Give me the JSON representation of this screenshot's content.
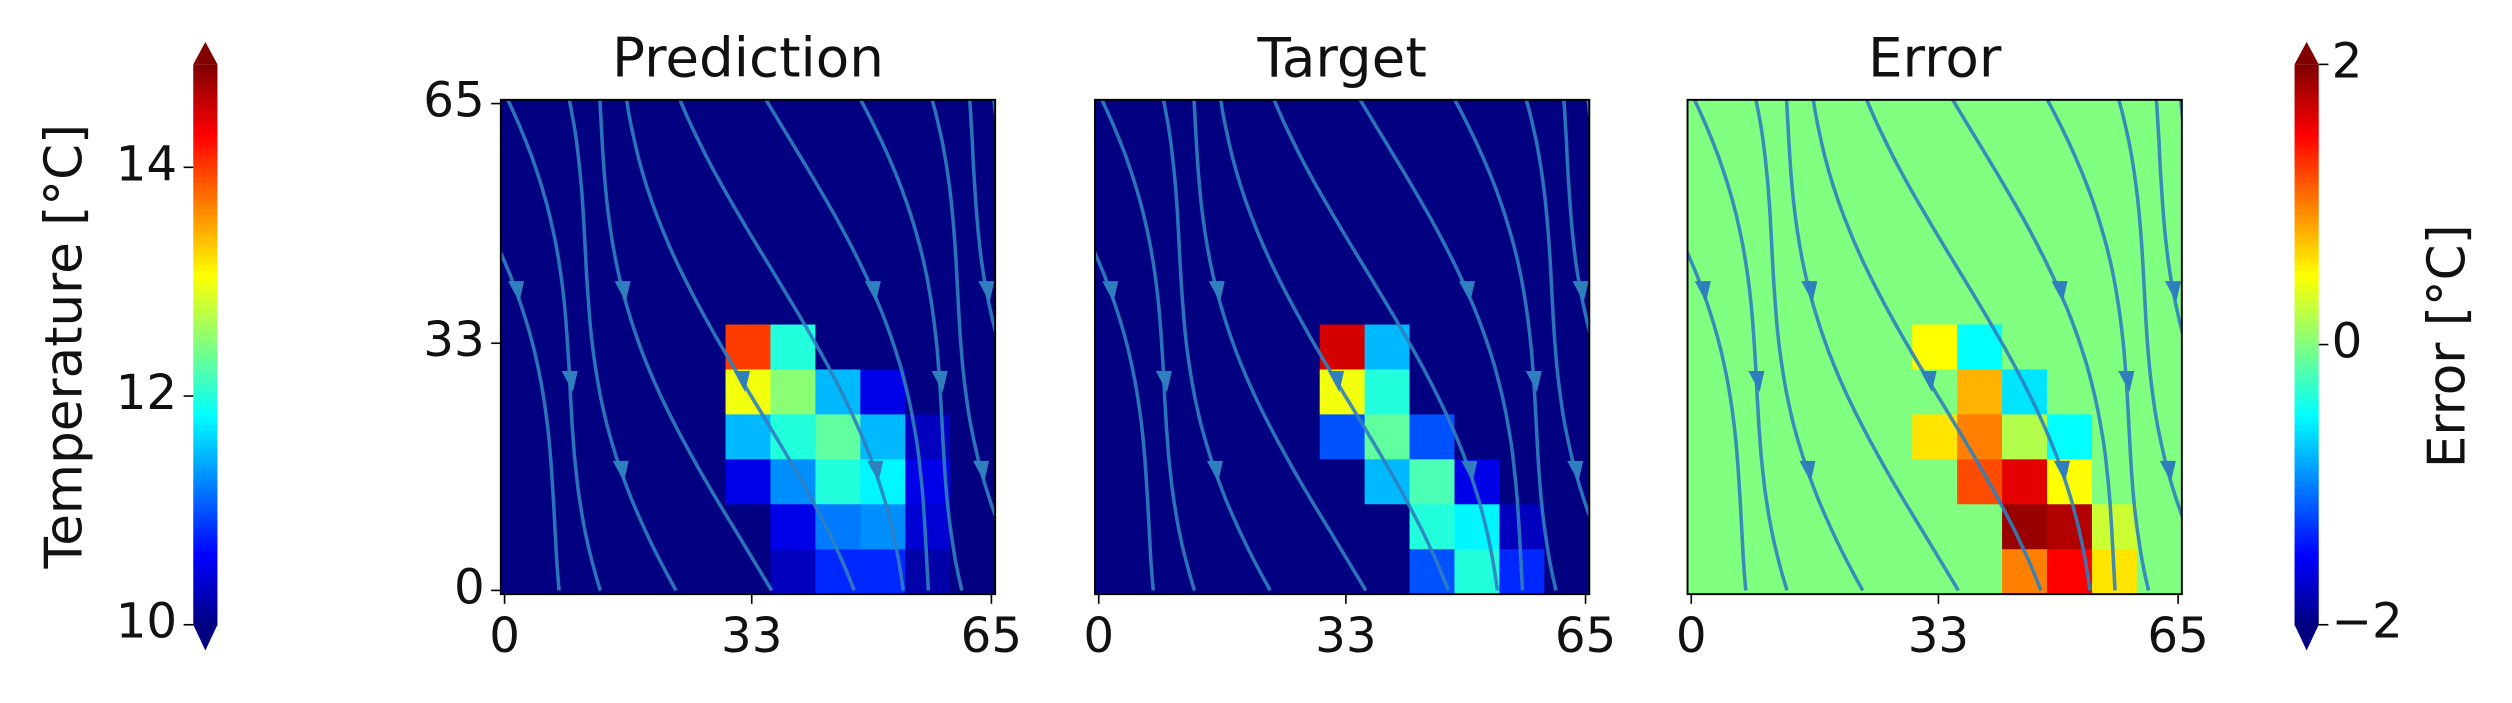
{
  "chart_data": [
    {
      "type": "heatmap",
      "title": "Prediction",
      "xlim": [
        -0.5,
        65.5
      ],
      "ylim": [
        -0.5,
        65.5
      ],
      "xticks": [
        0,
        33,
        65
      ],
      "yticks": [
        0,
        33,
        65
      ],
      "clim": [
        10,
        14.9
      ],
      "z": [
        [
          10,
          10,
          10,
          10,
          10,
          10,
          10,
          10,
          10,
          10,
          10
        ],
        [
          10,
          10,
          10,
          10,
          10,
          10,
          10,
          10,
          10,
          10,
          10
        ],
        [
          10,
          10,
          10,
          10,
          10,
          10,
          10,
          10,
          10,
          10,
          10
        ],
        [
          10,
          10,
          10,
          10,
          10,
          10,
          10,
          10,
          10,
          10,
          10
        ],
        [
          10,
          10,
          10,
          10,
          10,
          10,
          10,
          10,
          10,
          10,
          10
        ],
        [
          10,
          10,
          10,
          10,
          10,
          14,
          12,
          10,
          10,
          10,
          10
        ],
        [
          10,
          10,
          10,
          10,
          10,
          13,
          12.5,
          11.5,
          10.5,
          10,
          10
        ],
        [
          10,
          10,
          10,
          10,
          10,
          11.5,
          12,
          12.3,
          11.5,
          10.3,
          10
        ],
        [
          10,
          10,
          10,
          10,
          10,
          10.5,
          11.3,
          12,
          11.8,
          10.5,
          10
        ],
        [
          10,
          10,
          10,
          10,
          10,
          10,
          10.5,
          11.2,
          11.3,
          10.4,
          10
        ],
        [
          10,
          10,
          10,
          10,
          10,
          10,
          10.3,
          10.8,
          10.8,
          10.2,
          10
        ]
      ]
    },
    {
      "type": "heatmap",
      "title": "Target",
      "xlim": [
        -0.5,
        65.5
      ],
      "ylim": [
        -0.5,
        65.5
      ],
      "xticks": [
        0,
        33,
        65
      ],
      "clim": [
        10,
        14.9
      ],
      "z": [
        [
          10,
          10,
          10,
          10,
          10,
          10,
          10,
          10,
          10,
          10,
          10
        ],
        [
          10,
          10,
          10,
          10,
          10,
          10,
          10,
          10,
          10,
          10,
          10
        ],
        [
          10,
          10,
          10,
          10,
          10,
          10,
          10,
          10,
          10,
          10,
          10
        ],
        [
          10,
          10,
          10,
          10,
          10,
          10,
          10,
          10,
          10,
          10,
          10
        ],
        [
          10,
          10,
          10,
          10,
          10,
          10,
          10,
          10,
          10,
          10,
          10
        ],
        [
          10,
          10,
          10,
          10,
          10,
          14.5,
          11.5,
          10,
          10,
          10,
          10
        ],
        [
          10,
          10,
          10,
          10,
          10,
          13,
          12,
          10,
          10,
          10,
          10
        ],
        [
          10,
          10,
          10,
          10,
          10,
          11,
          12.3,
          11,
          10,
          10,
          10
        ],
        [
          10,
          10,
          10,
          10,
          10,
          10,
          11.5,
          12.2,
          10.5,
          10,
          10
        ],
        [
          10,
          10,
          10,
          10,
          10,
          10,
          10,
          12,
          11.8,
          10.3,
          10
        ],
        [
          10,
          10,
          10,
          10,
          10,
          10,
          10,
          11,
          12,
          10.8,
          10
        ]
      ]
    },
    {
      "type": "heatmap",
      "title": "Error",
      "xlim": [
        -0.5,
        65.5
      ],
      "ylim": [
        -0.5,
        65.5
      ],
      "xticks": [
        0,
        33,
        65
      ],
      "clim": [
        -2,
        2
      ],
      "z": [
        [
          0,
          0,
          0,
          0,
          0,
          0,
          0,
          0,
          0,
          0,
          0
        ],
        [
          0,
          0,
          0,
          0,
          0,
          0,
          0,
          0,
          0,
          0,
          0
        ],
        [
          0,
          0,
          0,
          0,
          0,
          0,
          0,
          0,
          0,
          0,
          0
        ],
        [
          0,
          0,
          0,
          0,
          0,
          0,
          0,
          0,
          0,
          0,
          0
        ],
        [
          0,
          0,
          0,
          0,
          0,
          0,
          0,
          0,
          0,
          0,
          0
        ],
        [
          0,
          0,
          0,
          0,
          0,
          0.5,
          -0.5,
          0,
          0,
          0,
          0
        ],
        [
          0,
          0,
          0,
          0,
          0,
          0,
          0.8,
          -0.6,
          0,
          0,
          0
        ],
        [
          0,
          0,
          0,
          0,
          0,
          0.6,
          1,
          0.2,
          -0.5,
          0,
          0
        ],
        [
          0,
          0,
          0,
          0,
          0,
          0,
          1.2,
          1.6,
          0.5,
          0,
          0
        ],
        [
          0,
          0,
          0,
          0,
          0,
          0,
          0,
          1.9,
          1.8,
          0.3,
          0
        ],
        [
          0,
          0,
          0,
          0,
          0,
          0,
          0,
          1,
          1.5,
          0.6,
          0
        ]
      ]
    },
    {
      "type": "colorbar",
      "label": "Temperature [°C]",
      "clim": [
        10,
        14.9
      ],
      "ticks": [
        10,
        12,
        14
      ],
      "extend": "both"
    },
    {
      "type": "colorbar",
      "label": "Error [°C]",
      "clim": [
        -2,
        2
      ],
      "ticks": [
        {
          "value": -2,
          "label": "−2"
        },
        0,
        2
      ],
      "extend": "both"
    }
  ]
}
